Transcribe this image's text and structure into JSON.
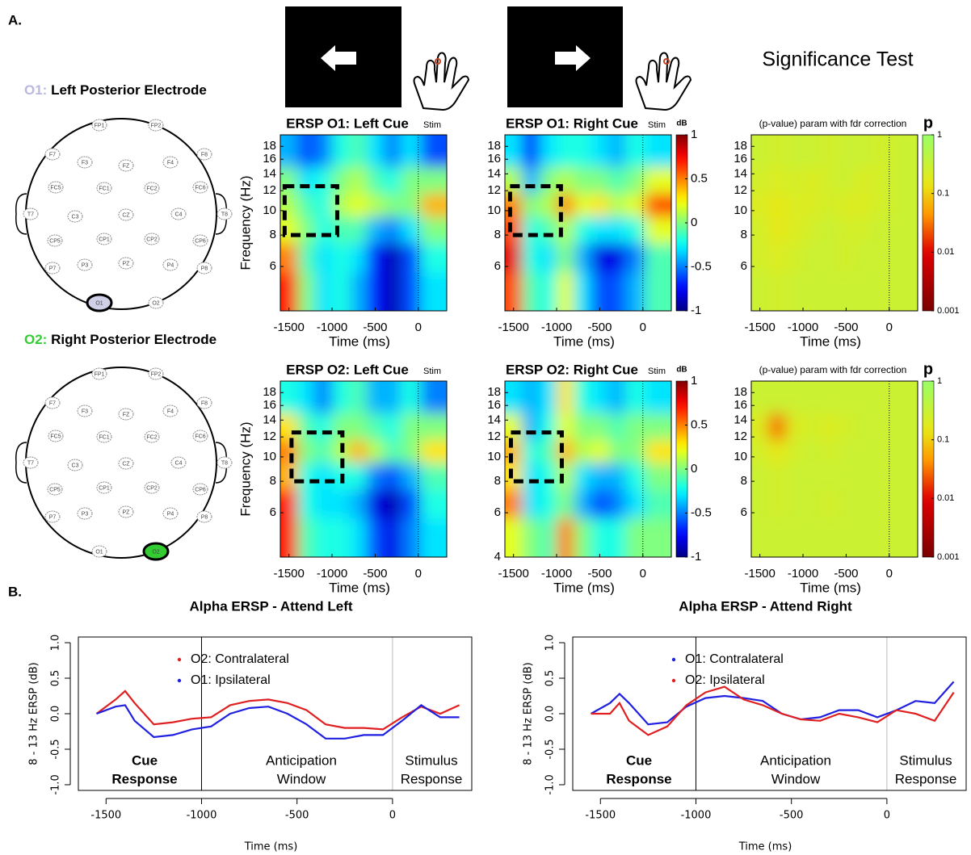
{
  "panel_labels": [
    "A.",
    "B."
  ],
  "significance_title": "Significance Test",
  "electrodes": [
    "FP1",
    "FP2",
    "F7",
    "F3",
    "FZ",
    "F4",
    "F8",
    "FC5",
    "FC1",
    "FC2",
    "FC6",
    "T7",
    "C3",
    "CZ",
    "C4",
    "T8",
    "CP5",
    "CP1",
    "CP2",
    "CP6",
    "P7",
    "P3",
    "PZ",
    "P4",
    "P8",
    "O1",
    "O2"
  ],
  "heads": [
    {
      "prefix": "O1:",
      "title": "Left Posterior Electrode",
      "highlight": "O1",
      "color": "#b8b8e0"
    },
    {
      "prefix": "O2:",
      "title": "Right Posterior Electrode",
      "highlight": "O2",
      "color": "#33cc33"
    }
  ],
  "chart_data": [
    {
      "type": "heatmap",
      "title": "ERSP O1: Left Cue",
      "event_label": "Stim",
      "event_x": 0,
      "xlabel": "Time (ms)",
      "ylabel": "Frequency (Hz)",
      "xlim": [
        -1600,
        330
      ],
      "xticks": [
        -1500,
        -1000,
        -500,
        0
      ],
      "ylim": [
        4,
        20
      ],
      "yticks": [
        6,
        8,
        10,
        12,
        14,
        16,
        18
      ],
      "ylog": true,
      "x": [
        -1500,
        -1300,
        -1100,
        -900,
        -700,
        -500,
        -300,
        -100,
        150
      ],
      "y": [
        17,
        13,
        10.5,
        8.5,
        6.5,
        5
      ],
      "z": [
        [
          -0.4,
          -0.6,
          -0.5,
          -0.2,
          -0.1,
          -0.3,
          -0.5,
          -0.3,
          -0.6
        ],
        [
          0.0,
          -0.3,
          -0.2,
          0.0,
          0.1,
          -0.1,
          -0.2,
          0.0,
          0.0
        ],
        [
          0.1,
          -0.1,
          -0.2,
          0.1,
          0.2,
          0.1,
          0.0,
          0.0,
          0.4
        ],
        [
          0.2,
          0.0,
          -0.2,
          -0.1,
          -0.1,
          -0.4,
          -0.5,
          -0.3,
          0.0
        ],
        [
          0.5,
          -0.1,
          -0.3,
          -0.2,
          -0.3,
          -0.7,
          -0.9,
          -0.6,
          -0.2
        ],
        [
          0.7,
          0.0,
          -0.3,
          -0.2,
          -0.4,
          -0.7,
          -0.9,
          -0.6,
          -0.3
        ]
      ],
      "zlim": [
        -1,
        1
      ],
      "colormap": "jet",
      "colorbar": false,
      "highlight": {
        "x": [
          -1550,
          -940
        ],
        "y": [
          8,
          12.5
        ]
      }
    },
    {
      "type": "heatmap",
      "title": "ERSP O1: Right Cue",
      "event_label": "Stim",
      "event_x": 0,
      "xlabel": "Time (ms)",
      "xlim": [
        -1600,
        330
      ],
      "xticks": [
        -1500,
        -1000,
        -500,
        0
      ],
      "ylim": [
        4,
        20
      ],
      "yticks": [
        6,
        8,
        10,
        12,
        14,
        16,
        18
      ],
      "ylog": true,
      "x": [
        -1500,
        -1300,
        -1100,
        -900,
        -700,
        -500,
        -300,
        -100,
        150
      ],
      "y": [
        17,
        13,
        10.5,
        8.5,
        6.5,
        5
      ],
      "z": [
        [
          -0.3,
          -0.7,
          -0.3,
          -0.2,
          -0.2,
          -0.3,
          -0.4,
          -0.2,
          -0.3
        ],
        [
          0.1,
          -0.4,
          0.0,
          0.1,
          0.0,
          0.0,
          -0.1,
          0.0,
          0.2
        ],
        [
          0.5,
          0.0,
          0.1,
          0.5,
          0.2,
          0.3,
          0.1,
          0.2,
          0.6
        ],
        [
          0.6,
          -0.2,
          -0.1,
          0.1,
          -0.2,
          -0.3,
          -0.3,
          -0.2,
          0.2
        ],
        [
          0.8,
          -0.2,
          -0.3,
          0.0,
          -0.4,
          -0.8,
          -0.8,
          -0.5,
          -0.1
        ],
        [
          0.6,
          -0.1,
          -0.2,
          0.2,
          -0.3,
          -0.6,
          -0.6,
          -0.4,
          -0.1
        ]
      ],
      "zlim": [
        -1,
        1
      ],
      "colormap": "jet",
      "colorbar": true,
      "colorbar_label": "dB",
      "zticks": [
        -1,
        -0.5,
        0,
        0.5,
        1
      ],
      "highlight": {
        "x": [
          -1540,
          -950
        ],
        "y": [
          8,
          12.5
        ]
      }
    },
    {
      "type": "heatmap",
      "title": "(p-value) param with fdr correction",
      "event_x": 0,
      "xlabel": "Time (ms)",
      "xlim": [
        -1600,
        330
      ],
      "xticks": [
        -1500,
        -1000,
        -500,
        0
      ],
      "ylim": [
        4,
        20
      ],
      "yticks": [
        6,
        8,
        10,
        12,
        14,
        16,
        18
      ],
      "ylog": true,
      "x": [
        -1500,
        -1300,
        -1100,
        -900,
        -700,
        -500,
        -300,
        -100,
        150
      ],
      "y": [
        17,
        13,
        10.5,
        8.5,
        6.5,
        5
      ],
      "z": [
        [
          0.3,
          0.25,
          0.3,
          0.3,
          0.25,
          0.3,
          0.3,
          0.25,
          0.3
        ],
        [
          0.25,
          0.2,
          0.25,
          0.2,
          0.25,
          0.3,
          0.2,
          0.25,
          0.3
        ],
        [
          0.2,
          0.15,
          0.2,
          0.2,
          0.25,
          0.2,
          0.2,
          0.25,
          0.3
        ],
        [
          0.25,
          0.15,
          0.2,
          0.25,
          0.3,
          0.25,
          0.25,
          0.3,
          0.3
        ],
        [
          0.25,
          0.2,
          0.25,
          0.3,
          0.3,
          0.25,
          0.3,
          0.3,
          0.3
        ],
        [
          0.3,
          0.25,
          0.3,
          0.3,
          0.3,
          0.3,
          0.3,
          0.3,
          0.3
        ]
      ],
      "zlim": [
        0.001,
        1
      ],
      "zlog": true,
      "colormap": "p",
      "colorbar": true,
      "colorbar_label": "p",
      "zticks": [
        0.001,
        0.01,
        0.1,
        1
      ]
    },
    {
      "type": "heatmap",
      "title": "ERSP O2: Left Cue",
      "event_label": "Stim",
      "event_x": 0,
      "xlabel": "Time (ms)",
      "ylabel": "Frequency (Hz)",
      "xlim": [
        -1600,
        330
      ],
      "xticks": [
        -1500,
        -1000,
        -500,
        0
      ],
      "ylim": [
        4,
        20
      ],
      "yticks": [
        6,
        8,
        10,
        12,
        14,
        16,
        18
      ],
      "ylog": true,
      "x": [
        -1500,
        -1300,
        -1100,
        -900,
        -700,
        -500,
        -300,
        -100,
        150
      ],
      "y": [
        17,
        13,
        10.5,
        8.5,
        6.5,
        5
      ],
      "z": [
        [
          -0.2,
          -0.3,
          -0.5,
          -0.2,
          -0.1,
          -0.4,
          -0.4,
          -0.2,
          -0.5
        ],
        [
          0.3,
          -0.1,
          -0.2,
          0.0,
          0.0,
          -0.1,
          -0.2,
          0.0,
          0.0
        ],
        [
          0.5,
          0.0,
          -0.1,
          0.1,
          0.4,
          0.1,
          -0.1,
          0.0,
          0.3
        ],
        [
          0.4,
          -0.2,
          -0.3,
          -0.2,
          -0.2,
          -0.5,
          -0.6,
          -0.4,
          -0.1
        ],
        [
          0.7,
          -0.2,
          -0.3,
          -0.3,
          -0.4,
          -0.8,
          -0.9,
          -0.6,
          -0.2
        ],
        [
          0.7,
          -0.1,
          -0.2,
          -0.2,
          -0.3,
          -0.6,
          -0.8,
          -0.5,
          -0.3
        ]
      ],
      "zlim": [
        -1,
        1
      ],
      "colormap": "jet",
      "colorbar": false,
      "highlight": {
        "x": [
          -1470,
          -880
        ],
        "y": [
          8,
          12.5
        ]
      }
    },
    {
      "type": "heatmap",
      "title": "ERSP O2: Right Cue",
      "event_label": "Stim",
      "event_x": 0,
      "xlabel": "Time (ms)",
      "xlim": [
        -1600,
        330
      ],
      "xticks": [
        -1500,
        -1000,
        -500,
        0
      ],
      "ylim": [
        4,
        20
      ],
      "yticks": [
        4,
        6,
        8,
        10,
        12,
        14,
        16,
        18
      ],
      "ylog": true,
      "x": [
        -1500,
        -1300,
        -1100,
        -900,
        -700,
        -500,
        -300,
        -100,
        150
      ],
      "y": [
        17,
        13,
        10.5,
        8.5,
        6.5,
        5
      ],
      "z": [
        [
          -0.3,
          -0.4,
          -0.3,
          0.3,
          -0.2,
          -0.3,
          -0.4,
          -0.2,
          -0.3
        ],
        [
          0.2,
          -0.4,
          -0.2,
          0.2,
          0.0,
          0.0,
          -0.1,
          0.0,
          0.0
        ],
        [
          0.4,
          -0.2,
          -0.1,
          0.4,
          0.1,
          0.2,
          0.0,
          0.0,
          0.3
        ],
        [
          0.3,
          -0.3,
          -0.2,
          0.1,
          -0.3,
          -0.4,
          -0.4,
          -0.2,
          0.0
        ],
        [
          0.5,
          -0.3,
          -0.2,
          0.0,
          -0.4,
          -0.6,
          -0.5,
          -0.3,
          -0.1
        ],
        [
          0.2,
          0.0,
          -0.1,
          0.5,
          0.0,
          -0.2,
          -0.2,
          0.0,
          0.0
        ]
      ],
      "zlim": [
        -1,
        1
      ],
      "colormap": "jet",
      "colorbar": true,
      "colorbar_label": "dB",
      "zticks": [
        -1,
        -0.5,
        0,
        0.5,
        1
      ],
      "highlight": {
        "x": [
          -1530,
          -940
        ],
        "y": [
          8,
          12.5
        ]
      }
    },
    {
      "type": "heatmap",
      "title": "(p-value) param with fdr correction",
      "event_x": 0,
      "xlabel": "Time (ms)",
      "xlim": [
        -1600,
        330
      ],
      "xticks": [
        -1500,
        -1000,
        -500,
        0
      ],
      "ylim": [
        4,
        20
      ],
      "yticks": [
        6,
        8,
        10,
        12,
        14,
        16,
        18
      ],
      "ylog": true,
      "x": [
        -1500,
        -1300,
        -1100,
        -900,
        -700,
        -500,
        -300,
        -100,
        150
      ],
      "y": [
        17,
        13,
        10.5,
        8.5,
        6.5,
        5
      ],
      "z": [
        [
          0.3,
          0.3,
          0.3,
          0.3,
          0.3,
          0.3,
          0.3,
          0.3,
          0.3
        ],
        [
          0.2,
          0.03,
          0.2,
          0.25,
          0.2,
          0.25,
          0.3,
          0.3,
          0.3
        ],
        [
          0.25,
          0.15,
          0.25,
          0.3,
          0.25,
          0.3,
          0.3,
          0.3,
          0.3
        ],
        [
          0.3,
          0.25,
          0.3,
          0.3,
          0.3,
          0.3,
          0.3,
          0.3,
          0.3
        ],
        [
          0.3,
          0.25,
          0.3,
          0.3,
          0.25,
          0.3,
          0.3,
          0.3,
          0.3
        ],
        [
          0.3,
          0.3,
          0.3,
          0.3,
          0.3,
          0.3,
          0.3,
          0.3,
          0.3
        ]
      ],
      "zlim": [
        0.001,
        1
      ],
      "zlog": true,
      "colormap": "p",
      "colorbar": true,
      "colorbar_label": "p",
      "zticks": [
        0.001,
        0.01,
        0.1,
        1
      ]
    },
    {
      "type": "line",
      "title": "Alpha ERSP - Attend Left",
      "xlabel": "Time (ms)",
      "ylabel": "8 - 13 Hz ERSP (dB)",
      "xlim": [
        -1645,
        415
      ],
      "xticks": [
        -1500,
        -1000,
        -500,
        0
      ],
      "ylim": [
        -1.08,
        1.08
      ],
      "yticks": [
        {
          "value": -1,
          "label": "-1.0"
        },
        {
          "value": -0.5,
          "label": "-0.5"
        },
        {
          "value": 0,
          "label": "0.0"
        },
        {
          "value": 0.5,
          "label": "0.5"
        },
        {
          "value": 1,
          "label": "1.0"
        }
      ],
      "vlines": [
        {
          "x": -1000,
          "color": "#000000"
        },
        {
          "x": 0,
          "color": "#bbbbbb"
        }
      ],
      "regions": [
        {
          "lines": [
            "Cue",
            "Response"
          ],
          "bold": true
        },
        {
          "lines": [
            "Anticipation",
            "Window"
          ],
          "bold": false
        },
        {
          "lines": [
            "Stimulus",
            "Response"
          ],
          "bold": false
        }
      ],
      "x": [
        -1550,
        -1450,
        -1400,
        -1350,
        -1250,
        -1150,
        -1050,
        -950,
        -850,
        -750,
        -650,
        -550,
        -450,
        -350,
        -250,
        -150,
        -50,
        50,
        150,
        250,
        350
      ],
      "series": [
        {
          "name": "O2: Contralateral",
          "color": "#e02020",
          "values": [
            0.0,
            0.2,
            0.32,
            0.15,
            -0.15,
            -0.12,
            -0.07,
            -0.05,
            0.12,
            0.18,
            0.2,
            0.15,
            0.05,
            -0.15,
            -0.2,
            -0.2,
            -0.22,
            -0.05,
            0.1,
            0.0,
            0.12
          ]
        },
        {
          "name": "O1: Ipsilateral",
          "color": "#2020e0",
          "values": [
            0.0,
            0.1,
            0.12,
            -0.1,
            -0.33,
            -0.3,
            -0.22,
            -0.18,
            0.0,
            0.08,
            0.1,
            0.0,
            -0.15,
            -0.35,
            -0.35,
            -0.3,
            -0.3,
            -0.1,
            0.12,
            -0.05,
            -0.05
          ]
        }
      ]
    },
    {
      "type": "line",
      "title": "Alpha ERSP - Attend Right",
      "xlabel": "Time (ms)",
      "ylabel": "8 - 13 Hz ERSP (dB)",
      "xlim": [
        -1645,
        415
      ],
      "xticks": [
        -1500,
        -1000,
        -500,
        0
      ],
      "ylim": [
        -1.08,
        1.08
      ],
      "yticks": [
        {
          "value": -1,
          "label": "-1.0"
        },
        {
          "value": -0.5,
          "label": "-0.5"
        },
        {
          "value": 0,
          "label": "0.0"
        },
        {
          "value": 0.5,
          "label": "0.5"
        },
        {
          "value": 1,
          "label": "1.0"
        }
      ],
      "vlines": [
        {
          "x": -1000,
          "color": "#000000"
        },
        {
          "x": 0,
          "color": "#bbbbbb"
        }
      ],
      "regions": [
        {
          "lines": [
            "Cue",
            "Response"
          ],
          "bold": true
        },
        {
          "lines": [
            "Anticipation",
            "Window"
          ],
          "bold": false
        },
        {
          "lines": [
            "Stimulus",
            "Response"
          ],
          "bold": false
        }
      ],
      "x": [
        -1550,
        -1450,
        -1400,
        -1350,
        -1250,
        -1150,
        -1050,
        -950,
        -850,
        -750,
        -650,
        -550,
        -450,
        -350,
        -250,
        -150,
        -50,
        50,
        150,
        250,
        350
      ],
      "series": [
        {
          "name": "O1: Contralateral",
          "color": "#2020e0",
          "values": [
            0.0,
            0.15,
            0.28,
            0.15,
            -0.15,
            -0.12,
            0.1,
            0.22,
            0.25,
            0.22,
            0.18,
            0.0,
            -0.08,
            -0.05,
            0.05,
            0.05,
            -0.05,
            0.05,
            0.18,
            0.15,
            0.45
          ]
        },
        {
          "name": "O2: Ipsilateral",
          "color": "#e02020",
          "values": [
            0.0,
            0.0,
            0.15,
            -0.1,
            -0.3,
            -0.18,
            0.12,
            0.3,
            0.38,
            0.2,
            0.12,
            0.0,
            -0.08,
            -0.1,
            0.0,
            -0.05,
            -0.12,
            0.05,
            0.0,
            -0.1,
            0.3
          ]
        }
      ]
    }
  ]
}
